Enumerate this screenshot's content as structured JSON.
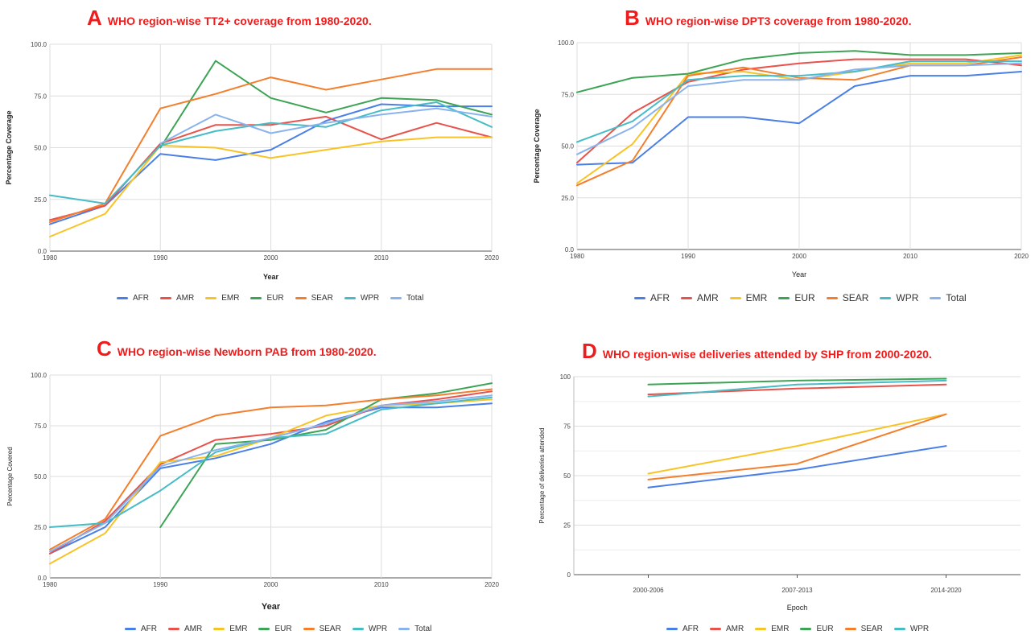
{
  "colors": {
    "AFR": "#4a7fe8",
    "AMR": "#e8524a",
    "EMR": "#f7c325",
    "EUR": "#3ca454",
    "SEAR": "#f47e2c",
    "WPR": "#45bcc6",
    "Total": "#8ab3ee"
  },
  "chart_data": [
    {
      "type": "line",
      "letter": "A",
      "title": "WHO region-wise TT2+ coverage from 1980-2020.",
      "xlabel": "Year",
      "ylabel": "Percentage Coverage",
      "ylim": [
        0,
        100
      ],
      "yticks": [
        "0.0",
        "25.0",
        "50.0",
        "75.0",
        "100.0"
      ],
      "xticks": [
        "1980",
        "1990",
        "2000",
        "2010",
        "2020"
      ],
      "x": [
        1980,
        1985,
        1990,
        1995,
        2000,
        2005,
        2010,
        2015,
        2020
      ],
      "legend": [
        "AFR",
        "AMR",
        "EMR",
        "EUR",
        "SEAR",
        "WPR",
        "Total"
      ],
      "legend_position": "bottom",
      "series": [
        {
          "name": "AFR",
          "values": [
            13,
            22,
            47,
            44,
            49,
            63,
            71,
            70,
            70
          ]
        },
        {
          "name": "AMR",
          "values": [
            15,
            22,
            52,
            61,
            61,
            65,
            54,
            62,
            55
          ]
        },
        {
          "name": "EMR",
          "values": [
            7,
            18,
            51,
            50,
            45,
            49,
            53,
            55,
            55
          ]
        },
        {
          "name": "EUR",
          "values": [
            null,
            null,
            50,
            92,
            74,
            67,
            74,
            73,
            66
          ]
        },
        {
          "name": "SEAR",
          "values": [
            14,
            23,
            69,
            76,
            84,
            78,
            83,
            88,
            88
          ]
        },
        {
          "name": "WPR",
          "values": [
            27,
            23,
            51,
            58,
            62,
            60,
            68,
            72,
            60
          ]
        },
        {
          "name": "Total",
          "values": [
            null,
            null,
            52,
            66,
            57,
            62,
            66,
            69,
            65
          ]
        }
      ]
    },
    {
      "type": "line",
      "letter": "B",
      "title": "WHO region-wise DPT3 coverage from 1980-2020.",
      "xlabel": "Year",
      "ylabel": "Percentage Coverage",
      "ylim": [
        0,
        100
      ],
      "yticks": [
        "0.0",
        "25.0",
        "50.0",
        "75.0",
        "100.0"
      ],
      "xticks": [
        "1980",
        "1990",
        "2000",
        "2010",
        "2020"
      ],
      "x": [
        1980,
        1985,
        1990,
        1995,
        2000,
        2005,
        2010,
        2015,
        2020
      ],
      "legend": [
        "AFR",
        "AMR",
        "EMR",
        "EUR",
        "SEAR",
        "WPR",
        "Total"
      ],
      "legend_position": "bottom",
      "series": [
        {
          "name": "AFR",
          "values": [
            41,
            42,
            64,
            64,
            61,
            79,
            84,
            84,
            86
          ]
        },
        {
          "name": "AMR",
          "values": [
            42,
            66,
            81,
            87,
            90,
            92,
            92,
            92,
            89
          ]
        },
        {
          "name": "EMR",
          "values": [
            32,
            51,
            85,
            86,
            82,
            86,
            90,
            90,
            94
          ]
        },
        {
          "name": "EUR",
          "values": [
            76,
            83,
            85,
            92,
            95,
            96,
            94,
            94,
            95
          ]
        },
        {
          "name": "SEAR",
          "values": [
            31,
            43,
            84,
            88,
            83,
            82,
            89,
            89,
            93
          ]
        },
        {
          "name": "WPR",
          "values": [
            52,
            62,
            82,
            84,
            84,
            86,
            91,
            91,
            91
          ]
        },
        {
          "name": "Total",
          "values": [
            46,
            59,
            79,
            82,
            82,
            87,
            89,
            89,
            90
          ]
        }
      ]
    },
    {
      "type": "line",
      "letter": "C",
      "title": "WHO region-wise Newborn PAB from 1980-2020.",
      "xlabel": "Year",
      "ylabel": "Percentage Covered",
      "ylim": [
        0,
        100
      ],
      "yticks": [
        "0.0",
        "25.0",
        "50.0",
        "75.0",
        "100.0"
      ],
      "xticks": [
        "1980",
        "1990",
        "2000",
        "2010",
        "2020"
      ],
      "x": [
        1980,
        1985,
        1990,
        1995,
        2000,
        2005,
        2010,
        2015,
        2020
      ],
      "legend": [
        "AFR",
        "AMR",
        "EMR",
        "EUR",
        "SEAR",
        "WPR",
        "Total"
      ],
      "legend_position": "bottom",
      "series": [
        {
          "name": "AFR",
          "values": [
            12,
            25,
            54,
            59,
            66,
            77,
            84,
            84,
            86
          ]
        },
        {
          "name": "AMR",
          "values": [
            12,
            28,
            56,
            68,
            71,
            75,
            85,
            88,
            92
          ]
        },
        {
          "name": "EMR",
          "values": [
            7,
            22,
            57,
            60,
            69,
            80,
            85,
            86,
            88
          ]
        },
        {
          "name": "EUR",
          "values": [
            null,
            null,
            25,
            66,
            68,
            73,
            88,
            91,
            96
          ]
        },
        {
          "name": "SEAR",
          "values": [
            14,
            29,
            70,
            80,
            84,
            85,
            88,
            90,
            93
          ]
        },
        {
          "name": "WPR",
          "values": [
            25,
            27,
            43,
            62,
            69,
            71,
            83,
            86,
            89
          ]
        },
        {
          "name": "Total",
          "values": [
            13,
            27,
            55,
            63,
            69,
            76,
            85,
            87,
            90
          ]
        }
      ]
    },
    {
      "type": "line",
      "letter": "D",
      "title": "WHO region-wise deliveries attended by SHP from 2000-2020.",
      "xlabel": "Epoch",
      "ylabel": "Percentage of deliveries attended",
      "ylim": [
        0,
        100
      ],
      "yticks": [
        "0",
        "25",
        "50",
        "75",
        "100"
      ],
      "categories": [
        "2000-2006",
        "2007-2013",
        "2014-2020"
      ],
      "legend": [
        "AFR",
        "AMR",
        "EMR",
        "EUR",
        "SEAR",
        "WPR"
      ],
      "legend_position": "bottom",
      "series": [
        {
          "name": "AFR",
          "values": [
            44,
            53,
            65
          ]
        },
        {
          "name": "AMR",
          "values": [
            91,
            94,
            96
          ]
        },
        {
          "name": "EMR",
          "values": [
            51,
            65,
            81
          ]
        },
        {
          "name": "EUR",
          "values": [
            96,
            98,
            99
          ]
        },
        {
          "name": "SEAR",
          "values": [
            48,
            56,
            81
          ]
        },
        {
          "name": "WPR",
          "values": [
            90,
            96,
            98
          ]
        }
      ]
    }
  ]
}
